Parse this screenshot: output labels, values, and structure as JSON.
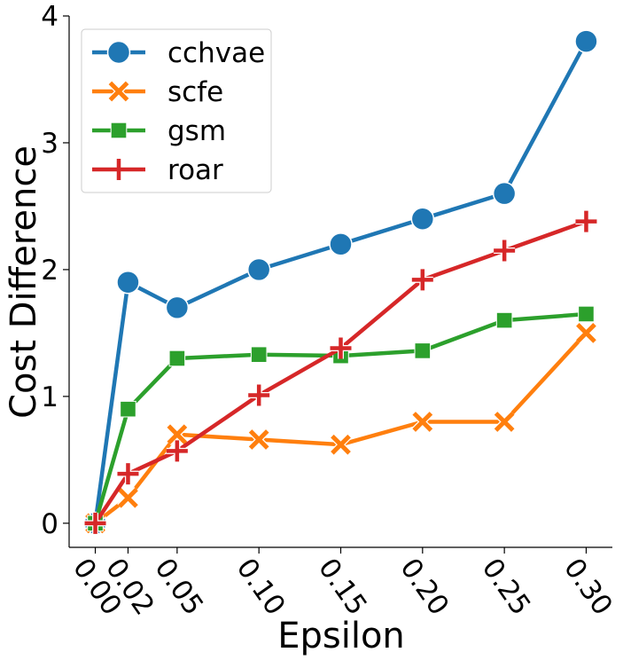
{
  "chart_data": {
    "type": "line",
    "xlabel": "Epsilon",
    "ylabel": "Cost Difference",
    "x": [
      0.0,
      0.02,
      0.05,
      0.1,
      0.15,
      0.2,
      0.25,
      0.3
    ],
    "x_tick_labels": [
      "0.00",
      "0.02",
      "0.05",
      "0.10",
      "0.15",
      "0.20",
      "0.25",
      "0.30"
    ],
    "y_ticks": [
      0,
      1,
      2,
      3,
      4
    ],
    "y_tick_labels": [
      "0",
      "1",
      "2",
      "3",
      "4"
    ],
    "ylim": [
      -0.19,
      4.0
    ],
    "xlim": [
      -0.016,
      0.316
    ],
    "grid": false,
    "legend_position": "top-left",
    "series": [
      {
        "name": "cchvae",
        "color": "#1f77b4",
        "marker": "circle",
        "values": [
          0.0,
          1.9,
          1.7,
          2.0,
          2.2,
          2.4,
          2.6,
          3.8
        ]
      },
      {
        "name": "scfe",
        "color": "#ff7f0e",
        "marker": "x",
        "values": [
          0.0,
          0.2,
          0.7,
          0.66,
          0.62,
          0.8,
          0.8,
          1.5
        ]
      },
      {
        "name": "gsm",
        "color": "#2ca02c",
        "marker": "square",
        "values": [
          0.0,
          0.9,
          1.3,
          1.33,
          1.32,
          1.36,
          1.6,
          1.65
        ]
      },
      {
        "name": "roar",
        "color": "#d62728",
        "marker": "plus",
        "values": [
          0.0,
          0.39,
          0.57,
          1.01,
          1.38,
          1.92,
          2.15,
          2.38
        ]
      }
    ]
  }
}
